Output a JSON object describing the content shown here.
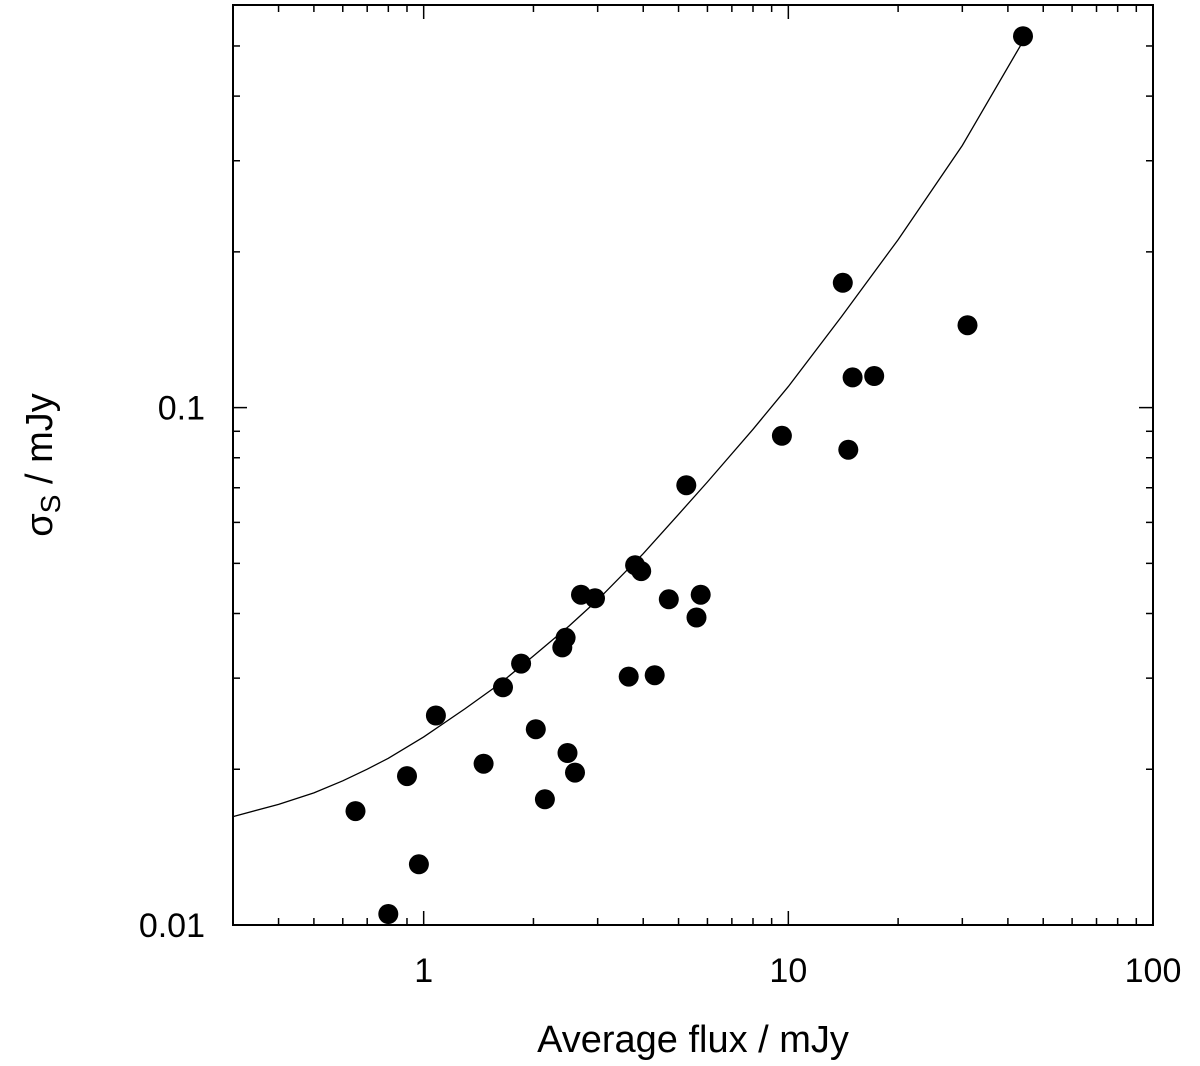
{
  "chart_data": {
    "type": "scatter",
    "xlabel": "Average flux / mJy",
    "ylabel_main": "σ",
    "ylabel_sub": "S",
    "ylabel_rest": " / mJy",
    "xscale": "log",
    "yscale": "log",
    "xlim": [
      0.3,
      100
    ],
    "ylim": [
      0.01,
      0.6
    ],
    "grid": false,
    "x_ticks": [
      {
        "value": 1,
        "label": "1"
      },
      {
        "value": 10,
        "label": "10"
      },
      {
        "value": 100,
        "label": "100"
      }
    ],
    "y_ticks": [
      {
        "value": 0.01,
        "label": "0.01"
      },
      {
        "value": 0.1,
        "label": "0.1"
      }
    ],
    "series": [
      {
        "type": "scatter",
        "color": "#000000",
        "points": [
          {
            "x": 0.65,
            "y": 0.0166
          },
          {
            "x": 0.8,
            "y": 0.0105
          },
          {
            "x": 0.9,
            "y": 0.0194
          },
          {
            "x": 0.97,
            "y": 0.0131
          },
          {
            "x": 1.08,
            "y": 0.0254
          },
          {
            "x": 1.46,
            "y": 0.0205
          },
          {
            "x": 1.65,
            "y": 0.0288
          },
          {
            "x": 1.85,
            "y": 0.032
          },
          {
            "x": 2.03,
            "y": 0.0239
          },
          {
            "x": 2.15,
            "y": 0.0175
          },
          {
            "x": 2.4,
            "y": 0.0344
          },
          {
            "x": 2.45,
            "y": 0.0359
          },
          {
            "x": 2.48,
            "y": 0.0215
          },
          {
            "x": 2.6,
            "y": 0.0197
          },
          {
            "x": 2.7,
            "y": 0.0435
          },
          {
            "x": 2.95,
            "y": 0.0428
          },
          {
            "x": 3.65,
            "y": 0.0302
          },
          {
            "x": 3.8,
            "y": 0.0496
          },
          {
            "x": 3.95,
            "y": 0.0483
          },
          {
            "x": 4.3,
            "y": 0.0304
          },
          {
            "x": 4.7,
            "y": 0.0426
          },
          {
            "x": 5.25,
            "y": 0.0708
          },
          {
            "x": 5.6,
            "y": 0.0393
          },
          {
            "x": 5.75,
            "y": 0.0435
          },
          {
            "x": 9.6,
            "y": 0.0882
          },
          {
            "x": 14.1,
            "y": 0.1743
          },
          {
            "x": 14.6,
            "y": 0.0829
          },
          {
            "x": 15.0,
            "y": 0.1144
          },
          {
            "x": 17.2,
            "y": 0.1151
          },
          {
            "x": 31.0,
            "y": 0.1443
          },
          {
            "x": 44.0,
            "y": 0.5223
          }
        ]
      },
      {
        "type": "line",
        "color": "#000000",
        "points": [
          {
            "x": 0.3,
            "y": 0.0162
          },
          {
            "x": 0.4,
            "y": 0.0171
          },
          {
            "x": 0.5,
            "y": 0.018
          },
          {
            "x": 0.6,
            "y": 0.019
          },
          {
            "x": 0.7,
            "y": 0.02
          },
          {
            "x": 0.8,
            "y": 0.021
          },
          {
            "x": 1.0,
            "y": 0.0231
          },
          {
            "x": 1.3,
            "y": 0.0262
          },
          {
            "x": 1.6,
            "y": 0.0291
          },
          {
            "x": 2.0,
            "y": 0.0331
          },
          {
            "x": 2.5,
            "y": 0.0378
          },
          {
            "x": 3.0,
            "y": 0.0425
          },
          {
            "x": 4.0,
            "y": 0.0522
          },
          {
            "x": 5.0,
            "y": 0.0622
          },
          {
            "x": 6.0,
            "y": 0.0718
          },
          {
            "x": 8.0,
            "y": 0.0908
          },
          {
            "x": 10.0,
            "y": 0.1098
          },
          {
            "x": 14.0,
            "y": 0.15
          },
          {
            "x": 20.0,
            "y": 0.2111
          },
          {
            "x": 30.0,
            "y": 0.321
          },
          {
            "x": 44.0,
            "y": 0.5105
          }
        ]
      }
    ]
  }
}
